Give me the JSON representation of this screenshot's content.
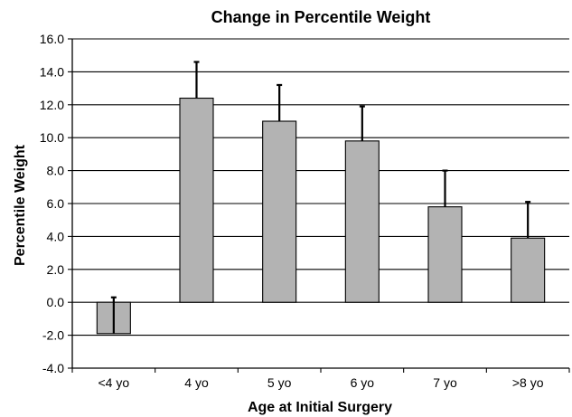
{
  "chart_data": {
    "type": "bar",
    "title": "Change in Percentile Weight",
    "xlabel": "Age at Initial Surgery",
    "ylabel": "Percentile Weight",
    "categories": [
      "<4 yo",
      "4 yo",
      "5 yo",
      "6 yo",
      "7 yo",
      ">8 yo"
    ],
    "values": [
      -1.9,
      12.4,
      11.0,
      9.8,
      5.8,
      3.9
    ],
    "error_plus": [
      2.2,
      2.2,
      2.2,
      2.1,
      2.2,
      2.2
    ],
    "ylim": [
      -4.0,
      16.0
    ],
    "yticks": [
      "16.0",
      "14.0",
      "12.0",
      "10.0",
      "8.0",
      "6.0",
      "4.0",
      "2.0",
      "0.0",
      "-2.0",
      "-4.0"
    ],
    "ytick_values": [
      16,
      14,
      12,
      10,
      8,
      6,
      4,
      2,
      0,
      -2,
      -4
    ],
    "grid": true,
    "legend": "none",
    "colors": {
      "bar_fill": "#b3b3b3",
      "bar_stroke": "#000000",
      "grid": "#000000",
      "axis": "#000000",
      "error_bar": "#000000"
    }
  }
}
